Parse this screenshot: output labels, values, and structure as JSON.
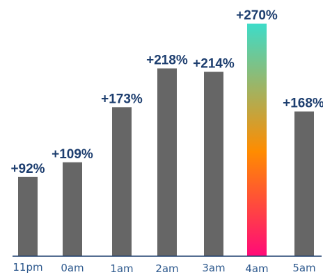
{
  "chart_data": {
    "type": "bar",
    "categories": [
      "11pm",
      "0am",
      "1am",
      "2am",
      "3am",
      "4am",
      "5am"
    ],
    "values": [
      92,
      109,
      173,
      218,
      214,
      270,
      168
    ],
    "data_labels": [
      "+92%",
      "+109%",
      "+173%",
      "+218%",
      "+214%",
      "+270%",
      "+168%"
    ],
    "highlight_index": 5,
    "ylim": [
      0,
      270
    ],
    "grid": false,
    "title": "",
    "xlabel": "",
    "ylabel": "",
    "colors": {
      "bar": "#666666",
      "highlight_gradient": [
        "#3ddcc9",
        "#ff8c00",
        "#ff0a78"
      ],
      "value_label": "#1d3e6f",
      "tick_label": "#2f5a8e",
      "baseline": "#1d3e6f"
    }
  }
}
